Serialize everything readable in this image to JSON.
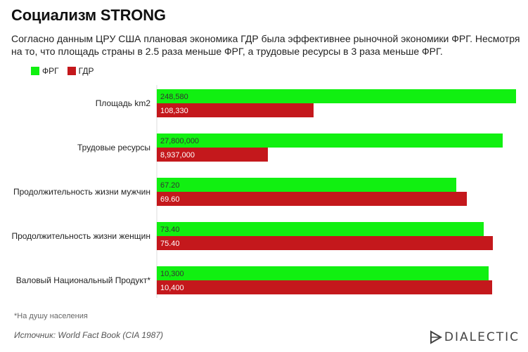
{
  "header": {
    "title": "Социализм STRONG",
    "subtitle": "Согласно данным ЦРУ США плановая экономика ГДР была эффективнее рыночной экономики ФРГ. Несмотря на то, что площадь страны в 2.5 раза меньше ФРГ, а трудовые ресурсы в 3 раза меньше ФРГ."
  },
  "legend": [
    {
      "label": "ФРГ",
      "color": "#11f011"
    },
    {
      "label": "ГДР",
      "color": "#c4181c"
    }
  ],
  "chart_data": {
    "type": "bar",
    "orientation": "horizontal",
    "grouping": "per-category independent scale",
    "categories": [
      "Площадь km2",
      "Трудовые ресурсы",
      "Продолжительность жизни мужчин",
      "Продолжительность жизни женщин",
      "Валовый Национальный Продукт*"
    ],
    "series": [
      {
        "name": "ФРГ",
        "color": "#11f011",
        "values": [
          248580,
          27800000,
          67.2,
          73.4,
          10300
        ],
        "labels": [
          "248,580",
          "27,800,000",
          "67.20",
          "73.40",
          "10,300"
        ]
      },
      {
        "name": "ГДР",
        "color": "#c4181c",
        "values": [
          108330,
          8937000,
          69.6,
          75.4,
          10400
        ],
        "labels": [
          "108,330",
          "8,937,000",
          "69.60",
          "75.40",
          "10,400"
        ]
      }
    ],
    "category_max": [
      248580,
      28850000,
      80.6,
      80.6,
      11150
    ],
    "grid": false,
    "legend_position": "top-left"
  },
  "footer": {
    "footnote": "*На душу населения",
    "source": "Источник: World Fact Book (CIA 1987)",
    "brand": "DIALECTIC"
  }
}
